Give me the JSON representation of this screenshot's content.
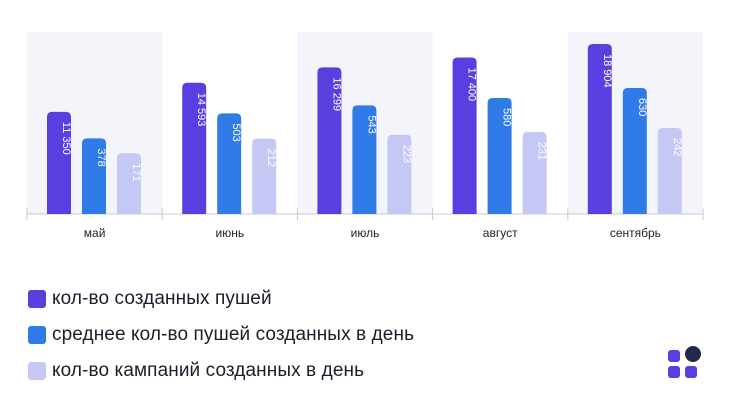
{
  "chart_data": {
    "type": "bar",
    "categories": [
      "май",
      "июнь",
      "июль",
      "август",
      "сентябрь"
    ],
    "series": [
      {
        "name": "кол-во созданных пушей",
        "values": [
          11350,
          14593,
          16299,
          17400,
          18904
        ],
        "labels": [
          "11 350",
          "14 593",
          "16 299",
          "17 400",
          "18 904"
        ],
        "color": "#5b3ee0"
      },
      {
        "name": "среднее кол-во пушей созданных в день",
        "values": [
          378,
          503,
          543,
          580,
          630
        ],
        "labels": [
          "378",
          "503",
          "543",
          "580",
          "630"
        ],
        "color": "#2f7be8"
      },
      {
        "name": "кол-во кампаний созданных в день",
        "values": [
          171,
          212,
          223,
          231,
          242
        ],
        "labels": [
          "171",
          "212",
          "223",
          "231",
          "242"
        ],
        "color": "#c5c8f4"
      }
    ],
    "legend_position": "bottom-left"
  },
  "colors": {
    "band_light": "#f4f4fb",
    "axis": "#c8c8d4",
    "text": "#1d1d2b",
    "logo_purple": "#5b3ee0",
    "logo_dark": "#1f2a4a"
  }
}
